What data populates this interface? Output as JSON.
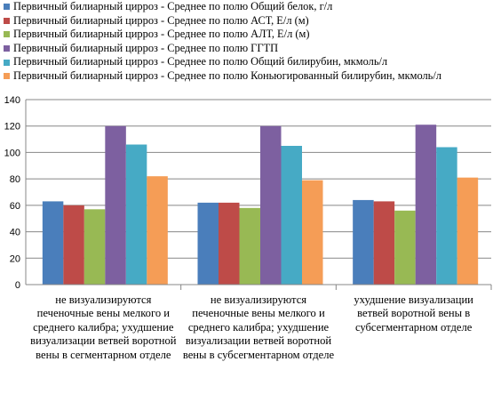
{
  "chart_data": {
    "type": "bar",
    "title": "",
    "xlabel": "",
    "ylabel": "",
    "ylim": [
      0,
      140
    ],
    "yticks": [
      0,
      20,
      40,
      60,
      80,
      100,
      120,
      140
    ],
    "grid": true,
    "legend_position": "top",
    "categories": [
      "не визуализируются печеночные вены мелкого и среднего калибра; ухудшение визуализации ветвей воротной вены в сегментарном отделе",
      "не визуализируются печеночные вены мелкого и среднего калибра; ухудшение визуализации ветвей воротной вены в субсегментарном отделе",
      "ухудшение визуализации ветвей воротной вены в субсегментарном отделе"
    ],
    "series": [
      {
        "name": "Первичный билиарный цирроз - Среднее по полю Общий белок, г/л",
        "color": "#4a7ebb",
        "values": [
          63,
          62,
          64
        ]
      },
      {
        "name": "Первичный билиарный цирроз - Среднее по полю АСТ, Е/л (м)",
        "color": "#be4b48",
        "values": [
          60,
          62,
          63
        ]
      },
      {
        "name": "Первичный билиарный цирроз - Среднее по полю АЛТ, Е/л (м)",
        "color": "#98b954",
        "values": [
          57,
          58,
          56
        ]
      },
      {
        "name": "Первичный билиарный цирроз - Среднее по полю ГГТП",
        "color": "#7d60a0",
        "values": [
          120,
          120,
          121
        ]
      },
      {
        "name": "Первичный билиарный цирроз - Среднее по полю Общий билирубин, мкмоль/л",
        "color": "#46aac5",
        "values": [
          106,
          105,
          104
        ]
      },
      {
        "name": "Первичный билиарный цирроз - Среднее по полю Коньюгированный билирубин, мкмоль/л",
        "color": "#f59d56",
        "values": [
          82,
          79,
          81
        ]
      }
    ]
  }
}
